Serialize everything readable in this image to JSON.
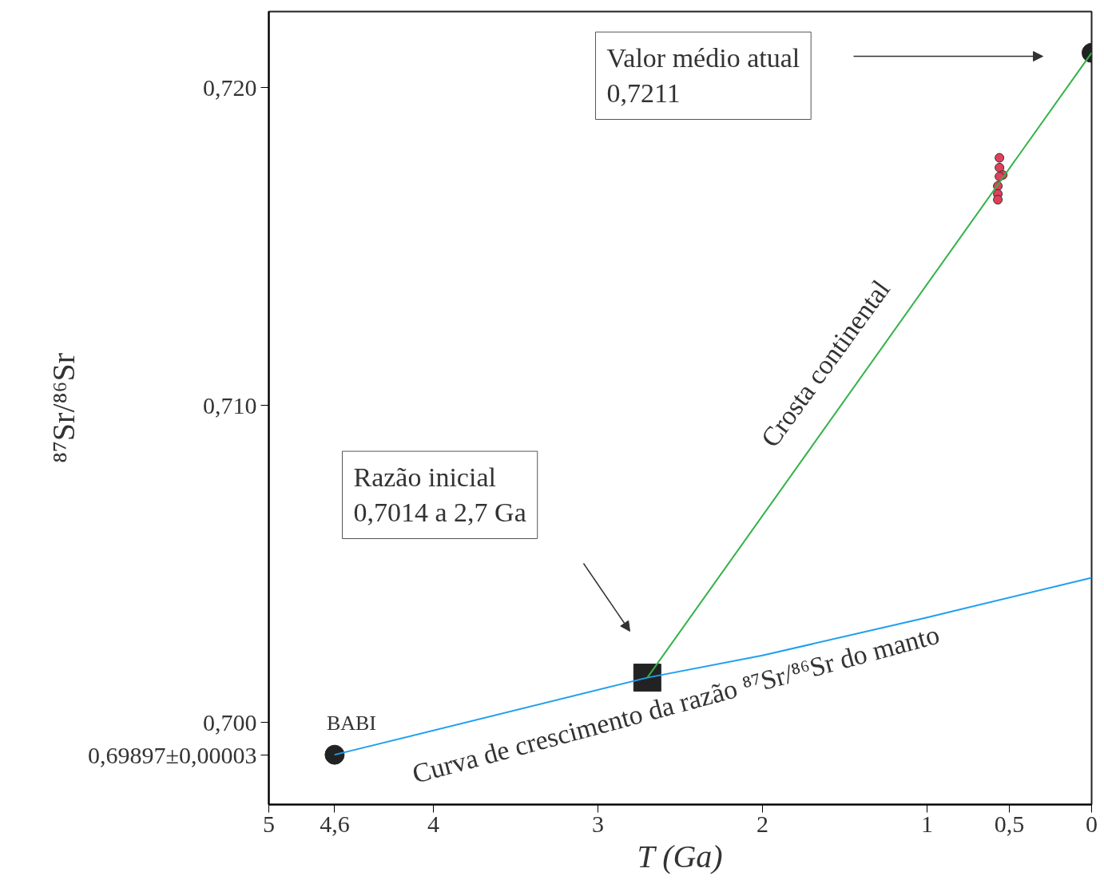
{
  "chart_data": {
    "type": "line",
    "xlabel": "T (Ga)",
    "ylabel": "⁸⁷Sr/⁸⁶Sr",
    "xlim": [
      5,
      0
    ],
    "ylim": [
      0.6974,
      0.7224
    ],
    "xticks": [
      5,
      {
        "value": 4.6,
        "label": "4,6"
      },
      4,
      3,
      2,
      1,
      {
        "value": 0.5,
        "label": "0,5"
      },
      0
    ],
    "yticks": [
      {
        "value": 0.69897,
        "label": "0,69897±0,00003"
      },
      {
        "value": 0.7,
        "label": "0,700"
      },
      {
        "value": 0.71,
        "label": "0,710"
      },
      {
        "value": 0.72,
        "label": "0,720"
      }
    ],
    "grid": false,
    "series": [
      {
        "type": "line",
        "color": "#1e9ff0",
        "x": [
          4.6,
          2.7,
          2,
          1,
          0
        ],
        "values": [
          0.69897,
          0.7014,
          0.7021,
          0.7033,
          0.70455
        ]
      },
      {
        "type": "line",
        "color": "#33b24a",
        "x": [
          2.7,
          0
        ],
        "values": [
          0.7014,
          0.7211
        ]
      },
      {
        "type": "scatter",
        "marker": "circle",
        "color": "#e0405a",
        "x": [
          0.56,
          0.56,
          0.54,
          0.56,
          0.57,
          0.57,
          0.57
        ],
        "values": [
          0.71779,
          0.71748,
          0.71725,
          0.7172,
          0.7169,
          0.71665,
          0.71647
        ]
      },
      {
        "type": "scatter",
        "marker": "circle",
        "color": "#222222",
        "x": [
          4.6,
          0
        ],
        "values": [
          0.69897,
          0.7211
        ]
      },
      {
        "type": "scatter",
        "marker": "square",
        "color": "#222222",
        "x": [
          2.7
        ],
        "values": [
          0.7014
        ]
      }
    ],
    "annotations": [
      "Valor médio atual\n0,7211",
      "Razão inicial\n0,7014 a 2,7 Ga",
      {
        "text": "BABI",
        "x": 4.6,
        "y": 0.69897
      },
      "Crosta continental",
      "Curva de crescimento da razão ⁸⁷Sr/⁸⁶Sr do manto"
    ]
  }
}
